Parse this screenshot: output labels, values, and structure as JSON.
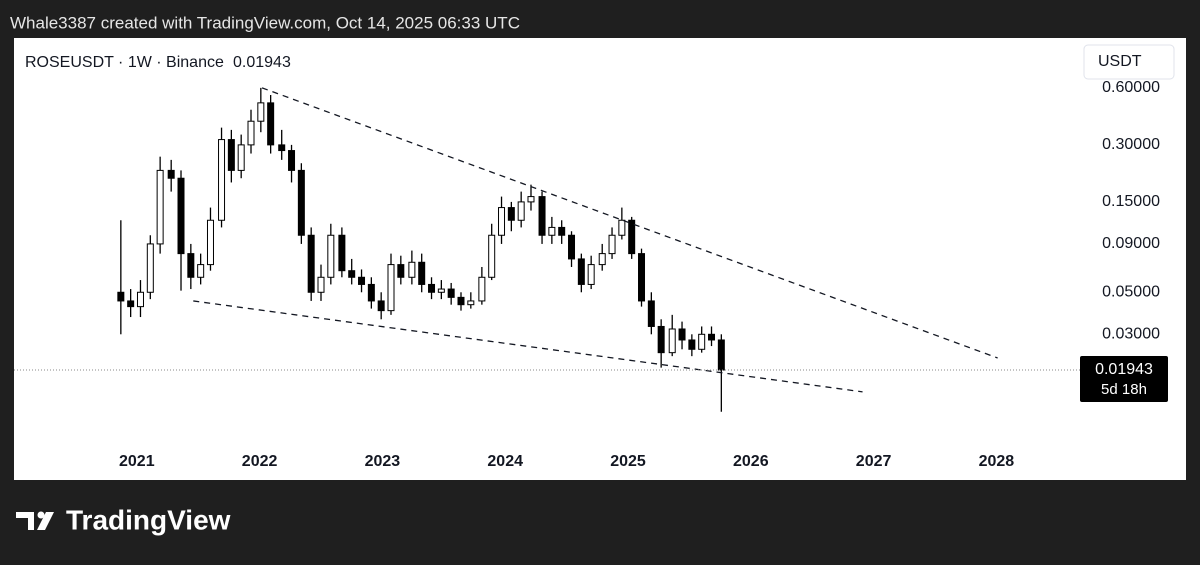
{
  "header": "Whale3387 created with TradingView.com, Oct 14, 2025 06:33 UTC",
  "brand": "TradingView",
  "chart_data": {
    "type": "candlestick",
    "title": "ROSEUSDT · 1W · Binance",
    "last_price": 0.01943,
    "countdown": "5d 18h",
    "currency": "USDT",
    "color": "#000000",
    "log_scale": true,
    "grid": false,
    "xlim": [
      2020.0,
      2028.64
    ],
    "xticks": [
      2021,
      2022,
      2023,
      2024,
      2025,
      2026,
      2027,
      2028
    ],
    "ylim": [
      0.0083,
      1.1
    ],
    "yticks": [
      {
        "value": 0.6,
        "label": "0.60000"
      },
      {
        "value": 0.3,
        "label": "0.30000"
      },
      {
        "value": 0.15,
        "label": "0.15000"
      },
      {
        "value": 0.09,
        "label": "0.09000"
      },
      {
        "value": 0.05,
        "label": "0.05000"
      },
      {
        "value": 0.03,
        "label": "0.03000"
      }
    ],
    "x": [
      2020.87,
      2020.95,
      2021.03,
      2021.11,
      2021.19,
      2021.28,
      2021.36,
      2021.44,
      2021.52,
      2021.6,
      2021.69,
      2021.77,
      2021.85,
      2021.93,
      2022.01,
      2022.09,
      2022.18,
      2022.26,
      2022.34,
      2022.42,
      2022.5,
      2022.58,
      2022.67,
      2022.75,
      2022.83,
      2022.91,
      2022.99,
      2023.07,
      2023.15,
      2023.24,
      2023.32,
      2023.4,
      2023.48,
      2023.56,
      2023.64,
      2023.72,
      2023.81,
      2023.89,
      2023.97,
      2024.05,
      2024.13,
      2024.21,
      2024.3,
      2024.38,
      2024.46,
      2024.54,
      2024.62,
      2024.7,
      2024.79,
      2024.87,
      2024.95,
      2025.03,
      2025.11,
      2025.19,
      2025.27,
      2025.36,
      2025.44,
      2025.52,
      2025.6,
      2025.68,
      2025.76
    ],
    "open": [
      0.05,
      0.045,
      0.042,
      0.05,
      0.09,
      0.22,
      0.2,
      0.08,
      0.06,
      0.07,
      0.12,
      0.32,
      0.22,
      0.3,
      0.4,
      0.5,
      0.3,
      0.28,
      0.22,
      0.1,
      0.05,
      0.06,
      0.1,
      0.065,
      0.06,
      0.055,
      0.045,
      0.04,
      0.07,
      0.06,
      0.072,
      0.055,
      0.05,
      0.052,
      0.047,
      0.043,
      0.045,
      0.06,
      0.1,
      0.14,
      0.12,
      0.15,
      0.16,
      0.1,
      0.11,
      0.1,
      0.075,
      0.055,
      0.07,
      0.08,
      0.1,
      0.12,
      0.08,
      0.045,
      0.033,
      0.024,
      0.032,
      0.028,
      0.025,
      0.03,
      0.028
    ],
    "high": [
      0.12,
      0.052,
      0.058,
      0.1,
      0.26,
      0.25,
      0.22,
      0.09,
      0.08,
      0.14,
      0.37,
      0.36,
      0.34,
      0.46,
      0.6,
      0.55,
      0.36,
      0.3,
      0.24,
      0.11,
      0.07,
      0.115,
      0.11,
      0.075,
      0.066,
      0.06,
      0.05,
      0.08,
      0.078,
      0.083,
      0.08,
      0.06,
      0.058,
      0.056,
      0.05,
      0.05,
      0.068,
      0.115,
      0.16,
      0.15,
      0.17,
      0.185,
      0.17,
      0.125,
      0.12,
      0.105,
      0.08,
      0.078,
      0.09,
      0.11,
      0.14,
      0.125,
      0.085,
      0.05,
      0.036,
      0.038,
      0.035,
      0.03,
      0.033,
      0.033,
      0.03
    ],
    "low": [
      0.03,
      0.037,
      0.037,
      0.046,
      0.08,
      0.17,
      0.051,
      0.052,
      0.055,
      0.065,
      0.11,
      0.19,
      0.2,
      0.27,
      0.35,
      0.27,
      0.25,
      0.19,
      0.09,
      0.045,
      0.045,
      0.055,
      0.06,
      0.055,
      0.05,
      0.041,
      0.036,
      0.038,
      0.055,
      0.055,
      0.05,
      0.046,
      0.046,
      0.043,
      0.04,
      0.041,
      0.043,
      0.058,
      0.09,
      0.105,
      0.11,
      0.135,
      0.09,
      0.09,
      0.09,
      0.068,
      0.05,
      0.052,
      0.065,
      0.075,
      0.095,
      0.075,
      0.042,
      0.03,
      0.02,
      0.023,
      0.025,
      0.023,
      0.024,
      0.026,
      0.0117
    ],
    "close": [
      0.045,
      0.042,
      0.05,
      0.09,
      0.22,
      0.2,
      0.08,
      0.06,
      0.07,
      0.12,
      0.32,
      0.22,
      0.3,
      0.4,
      0.5,
      0.3,
      0.28,
      0.22,
      0.1,
      0.05,
      0.06,
      0.1,
      0.065,
      0.06,
      0.055,
      0.045,
      0.04,
      0.07,
      0.06,
      0.072,
      0.055,
      0.05,
      0.052,
      0.047,
      0.043,
      0.045,
      0.06,
      0.1,
      0.14,
      0.12,
      0.15,
      0.16,
      0.1,
      0.11,
      0.1,
      0.075,
      0.055,
      0.07,
      0.08,
      0.1,
      0.12,
      0.08,
      0.045,
      0.033,
      0.024,
      0.032,
      0.028,
      0.025,
      0.03,
      0.028,
      0.01943
    ],
    "trendlines": [
      {
        "x": [
          2022.02,
          2028.01
        ],
        "y": [
          0.6,
          0.0225
        ]
      },
      {
        "x": [
          2021.46,
          2026.91
        ],
        "y": [
          0.045,
          0.0149
        ]
      }
    ]
  }
}
